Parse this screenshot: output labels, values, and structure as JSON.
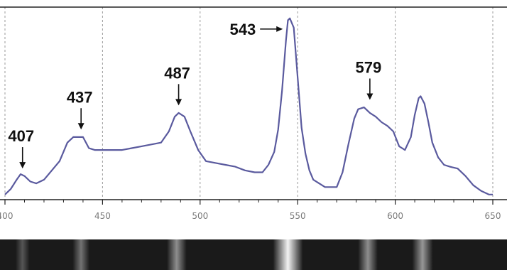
{
  "chart_data": {
    "type": "line",
    "title": "",
    "xlabel": "",
    "ylabel": "",
    "xlim": [
      400,
      650
    ],
    "grid": {
      "x": true,
      "y": false
    },
    "xticks": [
      400,
      450,
      500,
      550,
      600,
      650
    ],
    "xtick_labels": [
      "400",
      "450",
      "500",
      "550",
      "600",
      "650"
    ],
    "series": [
      {
        "x": [
          400,
          403,
          406,
          408,
          410,
          413,
          416,
          420,
          424,
          428,
          432,
          435,
          437,
          440,
          443,
          446,
          450,
          455,
          460,
          465,
          470,
          475,
          480,
          484,
          487,
          489,
          492,
          495,
          499,
          503,
          508,
          513,
          518,
          523,
          528,
          532,
          535,
          538,
          540,
          542,
          544,
          545,
          546,
          548,
          550,
          552,
          554,
          556,
          558,
          561,
          564,
          567,
          570,
          573,
          576,
          579,
          581,
          584,
          587,
          590,
          593,
          596,
          599,
          602,
          605,
          608,
          610,
          612,
          613,
          615,
          617,
          619,
          622,
          625,
          628,
          632,
          636,
          640,
          644,
          648,
          650
        ],
        "y": [
          0.02,
          0.05,
          0.1,
          0.13,
          0.12,
          0.09,
          0.08,
          0.1,
          0.15,
          0.2,
          0.3,
          0.33,
          0.33,
          0.33,
          0.27,
          0.26,
          0.26,
          0.26,
          0.26,
          0.27,
          0.28,
          0.29,
          0.3,
          0.36,
          0.44,
          0.46,
          0.44,
          0.36,
          0.26,
          0.2,
          0.19,
          0.18,
          0.17,
          0.15,
          0.14,
          0.14,
          0.18,
          0.25,
          0.37,
          0.58,
          0.85,
          0.96,
          0.97,
          0.92,
          0.65,
          0.38,
          0.24,
          0.15,
          0.1,
          0.08,
          0.06,
          0.06,
          0.06,
          0.14,
          0.29,
          0.43,
          0.48,
          0.49,
          0.46,
          0.44,
          0.41,
          0.39,
          0.36,
          0.28,
          0.26,
          0.33,
          0.45,
          0.54,
          0.55,
          0.51,
          0.41,
          0.3,
          0.22,
          0.18,
          0.17,
          0.16,
          0.12,
          0.07,
          0.04,
          0.02,
          0.02
        ]
      }
    ],
    "annotations": [
      {
        "text": "407",
        "x": 409,
        "y": 0.13,
        "kind": "arrow-down"
      },
      {
        "text": "437",
        "x": 439,
        "y": 0.34,
        "kind": "arrow-down"
      },
      {
        "text": "487",
        "x": 489,
        "y": 0.47,
        "kind": "arrow-down"
      },
      {
        "text": "543",
        "x": 546,
        "y": 0.92,
        "kind": "arrow-right"
      },
      {
        "text": "579",
        "x": 587,
        "y": 0.5,
        "kind": "arrow-down"
      }
    ],
    "colors": {
      "line": "#5a5a9e",
      "grid": "#9a9a9a",
      "axis": "#222222",
      "tick_text": "#7a7a7a"
    }
  },
  "spectrum_strip": {
    "colors": {
      "base": "#1a1a1a"
    },
    "bands": [
      {
        "x": 409,
        "intensity": 0.15
      },
      {
        "x": 439,
        "intensity": 0.3
      },
      {
        "x": 488,
        "intensity": 0.45
      },
      {
        "x": 545,
        "intensity": 1.0
      },
      {
        "x": 586,
        "intensity": 0.45
      },
      {
        "x": 614,
        "intensity": 0.5
      }
    ]
  }
}
